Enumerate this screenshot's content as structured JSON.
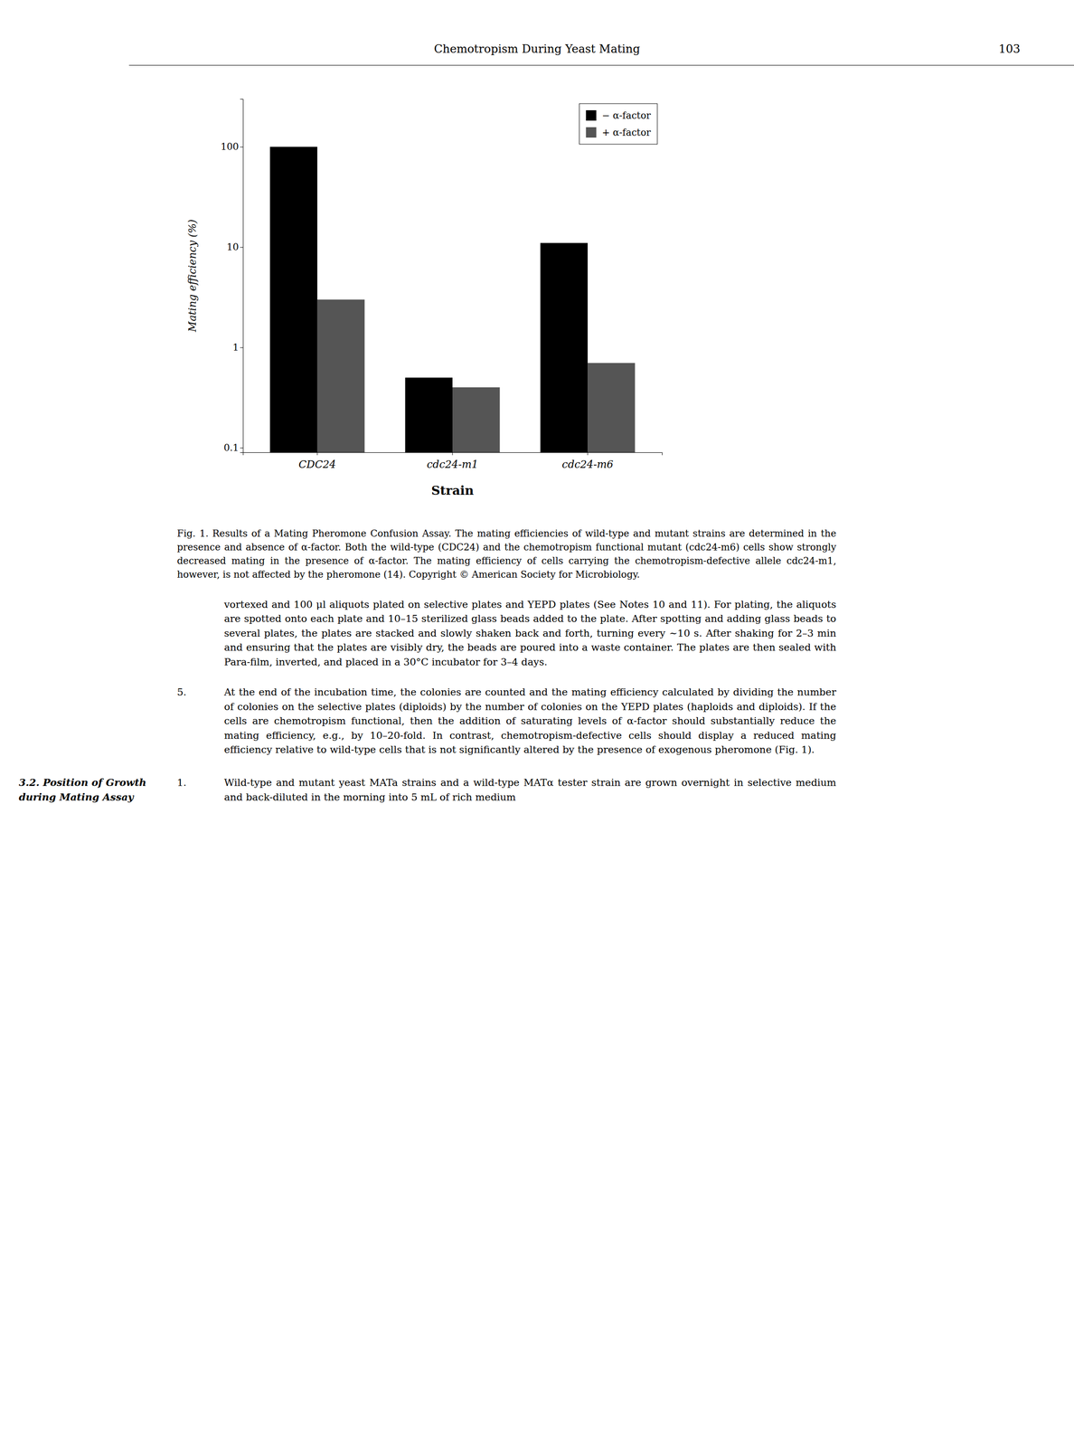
{
  "page_title": "Chemotropism During Yeast Mating",
  "page_number": "103",
  "chart_data": {
    "type": "bar",
    "xlabel": "Strain",
    "ylabel": "Mating efficiency (%)",
    "categories": [
      "CDC24",
      "cdc24-m1",
      "cdc24-m6"
    ],
    "series": [
      {
        "name": "− α-factor",
        "color": "#000000",
        "values": [
          100,
          0.5,
          11
        ]
      },
      {
        "name": "+ α-factor",
        "color": "#555555",
        "values": [
          3,
          0.4,
          0.7
        ]
      }
    ],
    "log": "y",
    "ylim": [
      0.09,
      300
    ],
    "yticks": [
      0.1,
      1,
      10,
      100
    ],
    "legend": "upper right",
    "grid": false
  },
  "caption": "Fig. 1. Results of a Mating Pheromone Confusion Assay. The mating efficiencies of wild-type and mutant strains are determined in the presence and absence of α-factor. Both the wild-type (CDC24) and the chemotropism functional mutant (cdc24-m6) cells show strongly decreased mating in the presence of α-factor. The mating efficiency of cells carrying the chemotropism-defective allele cdc24-m1, however, is not affected by the pheromone (14). Copyright © American Society for Microbiology.",
  "paragraph": "vortexed and 100 μl aliquots plated on selective plates and YEPD plates (See Notes 10 and 11). For plating, the aliquots are spotted onto each plate and 10–15 sterilized glass beads added to the plate. After spotting and adding glass beads to several plates, the plates are stacked and slowly shaken back and forth, turning every ~10 s. After shaking for 2–3 min and ensuring that the plates are visibly dry, the beads are poured into a waste container. The plates are then sealed with Para-film, inverted, and placed in a 30°C incubator for 3–4 days.",
  "step5": {
    "number": "5.",
    "text": "At the end of the incubation time, the colonies are counted and the mating efficiency calculated by dividing the number of colonies on the selective plates (diploids) by the number of colonies on the YEPD plates (haploids and diploids). If the cells are chemotropism functional, then the addition of saturating levels of α-factor should substantially reduce the mating efficiency, e.g., by 10–20-fold. In contrast, chemotropism-defective cells should display a reduced mating efficiency relative to wild-type cells that is not significantly altered by the presence of exogenous pheromone (Fig. 1)."
  },
  "section": {
    "heading": [
      "3.2. Position of Growth",
      "during Mating Assay"
    ],
    "number": "1.",
    "text": "Wild-type and mutant yeast MATa strains and a wild-type MATα tester strain are grown overnight in selective medium and back-diluted in the morning into 5 mL of rich medium"
  }
}
